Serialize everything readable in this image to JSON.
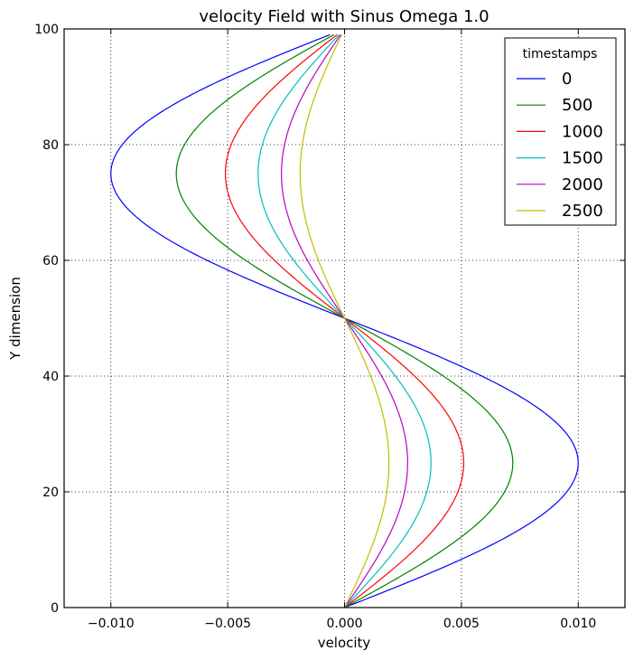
{
  "chart_data": {
    "type": "line",
    "title": "velocity Field with Sinus Omega 1.0",
    "xlabel": "velocity",
    "ylabel": "Y dimension",
    "xlim": [
      -0.012,
      0.012
    ],
    "ylim": [
      0,
      100
    ],
    "xticks": [
      -0.01,
      -0.005,
      0.0,
      0.005,
      0.01
    ],
    "xtick_labels": [
      "−0.010",
      "−0.005",
      "0.000",
      "0.005",
      "0.010"
    ],
    "yticks": [
      0,
      20,
      40,
      60,
      80,
      100
    ],
    "ytick_labels": [
      "0",
      "20",
      "40",
      "60",
      "80",
      "100"
    ],
    "grid": true,
    "legend": {
      "title": "timestamps",
      "position": "top-right"
    },
    "y_range": [
      0,
      99
    ],
    "profile": "sin(2*pi*y/100)",
    "series": [
      {
        "name": "0",
        "amplitude": 0.01,
        "color": "#0000ff"
      },
      {
        "name": "500",
        "amplitude": 0.0072,
        "color": "#008000"
      },
      {
        "name": "1000",
        "amplitude": 0.0051,
        "color": "#ff0000"
      },
      {
        "name": "1500",
        "amplitude": 0.0037,
        "color": "#00bfbf"
      },
      {
        "name": "2000",
        "amplitude": 0.0027,
        "color": "#bf00bf"
      },
      {
        "name": "2500",
        "amplitude": 0.0019,
        "color": "#bfbf00"
      }
    ]
  }
}
